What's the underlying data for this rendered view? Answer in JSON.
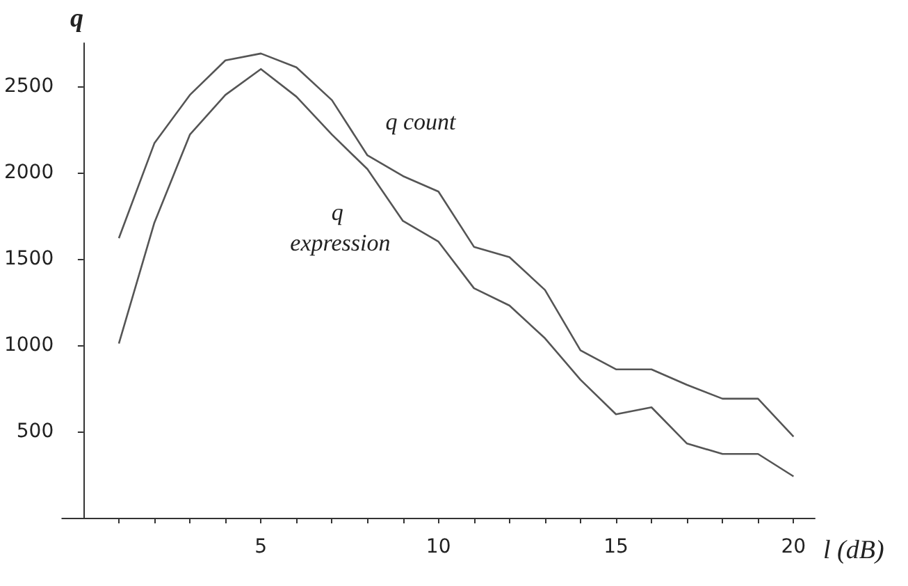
{
  "chart_data": {
    "type": "line",
    "xlabel": "l (dB)",
    "ylabel": "q",
    "x": [
      1,
      2,
      3,
      4,
      5,
      6,
      7,
      8,
      9,
      10,
      11,
      12,
      13,
      14,
      15,
      16,
      17,
      18,
      19,
      20
    ],
    "series": [
      {
        "name": "q count",
        "color": "#555555",
        "values": [
          1620,
          2170,
          2450,
          2650,
          2690,
          2610,
          2420,
          2100,
          1980,
          1890,
          1570,
          1510,
          1320,
          970,
          860,
          860,
          770,
          690,
          690,
          470
        ]
      },
      {
        "name": "q expression",
        "color": "#555555",
        "values": [
          1010,
          1710,
          2220,
          2450,
          2600,
          2440,
          2220,
          2020,
          1720,
          1600,
          1330,
          1230,
          1040,
          800,
          600,
          640,
          430,
          370,
          370,
          240
        ]
      }
    ],
    "xlim": [
      -0.6,
      20.6
    ],
    "ylim": [
      0,
      2750
    ],
    "xticks": [
      {
        "value": 1,
        "label": null
      },
      {
        "value": 2,
        "label": null
      },
      {
        "value": 3,
        "label": null
      },
      {
        "value": 4,
        "label": null
      },
      5,
      {
        "value": 6,
        "label": null
      },
      {
        "value": 7,
        "label": null
      },
      {
        "value": 8,
        "label": null
      },
      {
        "value": 9,
        "label": null
      },
      10,
      {
        "value": 11,
        "label": null
      },
      {
        "value": 12,
        "label": null
      },
      {
        "value": 13,
        "label": null
      },
      {
        "value": 14,
        "label": null
      },
      15,
      {
        "value": 16,
        "label": null
      },
      {
        "value": 17,
        "label": null
      },
      {
        "value": 18,
        "label": null
      },
      {
        "value": 19,
        "label": null
      },
      20
    ],
    "yticks": [
      500,
      1000,
      1500,
      2000,
      2500
    ],
    "grid": false,
    "legend": false,
    "marker": "none",
    "line_style": "solid"
  }
}
